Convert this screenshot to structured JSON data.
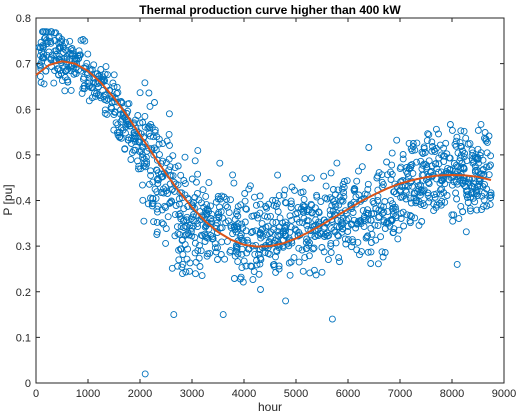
{
  "chart_data": {
    "type": "scatter",
    "title": "Thermal production curve higher than 400 kW",
    "xlabel": "hour",
    "ylabel": "P [pu]",
    "xlim": [
      0,
      9000
    ],
    "ylim": [
      0,
      0.8
    ],
    "xticks": [
      0,
      1000,
      2000,
      3000,
      4000,
      5000,
      6000,
      7000,
      8000,
      9000
    ],
    "xtick_labels": [
      "0",
      "1000",
      "2000",
      "3000",
      "4000",
      "5000",
      "6000",
      "7000",
      "8000",
      "9000"
    ],
    "yticks": [
      0,
      0.1,
      0.2,
      0.3,
      0.4,
      0.5,
      0.6,
      0.7,
      0.8
    ],
    "ytick_labels": [
      "0",
      "0.1",
      "0.2",
      "0.3",
      "0.4",
      "0.5",
      "0.6",
      "0.7",
      "0.8"
    ],
    "grid": false,
    "colors": {
      "scatter": "#0072BD",
      "fit": "#D95319",
      "axes": "#262626"
    },
    "scatter_series": {
      "marker": "open-circle",
      "trend": {
        "x": [
          0,
          200,
          500,
          800,
          1000,
          1300,
          1600,
          1900,
          2200,
          2500,
          2800,
          3100,
          3500,
          4000,
          4500,
          5000,
          5500,
          6000,
          6500,
          7000,
          7500,
          8000,
          8500,
          8760
        ],
        "y": [
          0.715,
          0.73,
          0.71,
          0.7,
          0.68,
          0.64,
          0.58,
          0.53,
          0.5,
          0.43,
          0.36,
          0.35,
          0.36,
          0.31,
          0.33,
          0.34,
          0.35,
          0.37,
          0.38,
          0.42,
          0.47,
          0.47,
          0.45,
          0.46
        ]
      },
      "outliers": [
        {
          "x": 2100,
          "y": 0.02
        },
        {
          "x": 2650,
          "y": 0.15
        },
        {
          "x": 5700,
          "y": 0.14
        },
        {
          "x": 8100,
          "y": 0.26
        },
        {
          "x": 3600,
          "y": 0.15
        },
        {
          "x": 4800,
          "y": 0.18
        }
      ],
      "count": 1400
    },
    "fit_curve": {
      "x": [
        0,
        250,
        500,
        750,
        1000,
        1250,
        1500,
        1750,
        2000,
        2250,
        2500,
        2750,
        3000,
        3250,
        3500,
        3750,
        4000,
        4250,
        4500,
        4750,
        5000,
        5250,
        5500,
        5750,
        6000,
        6250,
        6500,
        6750,
        7000,
        7250,
        7500,
        7750,
        8000,
        8250,
        8500,
        8750
      ],
      "y": [
        0.675,
        0.697,
        0.705,
        0.7,
        0.684,
        0.658,
        0.625,
        0.586,
        0.544,
        0.501,
        0.459,
        0.42,
        0.385,
        0.355,
        0.331,
        0.314,
        0.303,
        0.299,
        0.3,
        0.306,
        0.317,
        0.331,
        0.347,
        0.364,
        0.381,
        0.398,
        0.413,
        0.426,
        0.437,
        0.445,
        0.451,
        0.455,
        0.456,
        0.455,
        0.452,
        0.445
      ]
    }
  }
}
